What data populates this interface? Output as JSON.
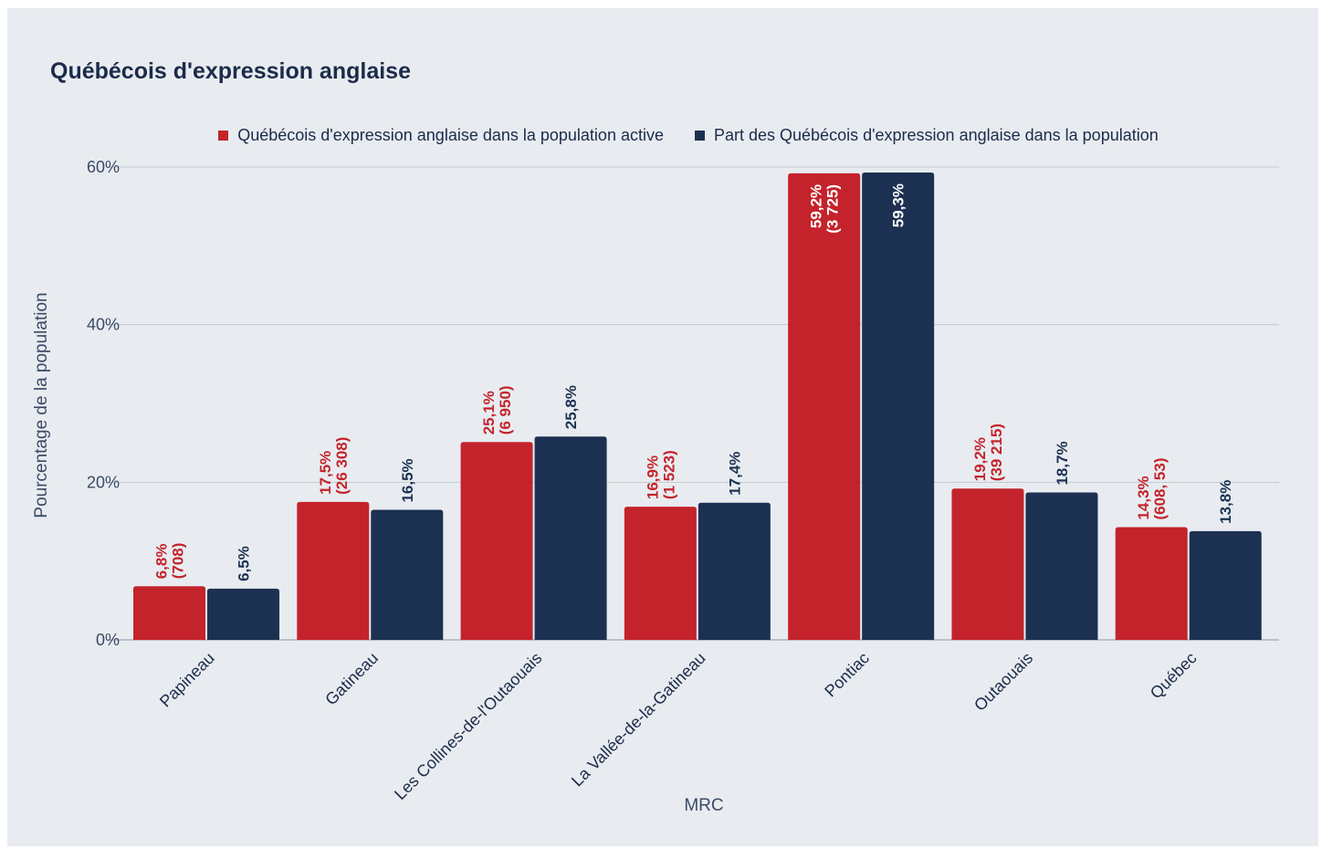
{
  "chart_data": {
    "type": "bar",
    "title": "Québécois d'expression anglaise",
    "xlabel": "MRC",
    "ylabel": "Pourcentage de la population",
    "ylim": [
      0,
      60
    ],
    "yticks": [
      {
        "value": 0,
        "label": "0%"
      },
      {
        "value": 20,
        "label": "20%"
      },
      {
        "value": 40,
        "label": "40%"
      },
      {
        "value": 60,
        "label": "60%"
      }
    ],
    "grid": true,
    "legend_position": "top",
    "categories": [
      "Papineau",
      "Gatineau",
      "Les Collines-de-l'Outaouais",
      "La Vallée-de-la-Gatineau",
      "Pontiac",
      "Outaouais",
      "Québec"
    ],
    "series": [
      {
        "name": "Québécois d'expression anglaise dans la population active",
        "color": "#c4232b",
        "values": [
          6.8,
          17.5,
          25.1,
          16.9,
          59.2,
          19.2,
          14.3
        ],
        "labels": [
          [
            "6,8%",
            "(708)"
          ],
          [
            "17,5%",
            "(26 308)"
          ],
          [
            "25,1%",
            "(6 950)"
          ],
          [
            "16,9%",
            "(1 523)"
          ],
          [
            "59,2%",
            "(3 725)"
          ],
          [
            "19,2%",
            "(39 215)"
          ],
          [
            "14,3%",
            "(608, 53)"
          ]
        ]
      },
      {
        "name": "Part des Québécois d'expression anglaise dans la population",
        "color": "#1c3152",
        "values": [
          6.5,
          16.5,
          25.8,
          17.4,
          59.3,
          18.7,
          13.8
        ],
        "labels": [
          [
            "6,5%"
          ],
          [
            "16,5%"
          ],
          [
            "25,8%"
          ],
          [
            "17,4%"
          ],
          [
            "59,3%"
          ],
          [
            "18,7%"
          ],
          [
            "13,8%"
          ]
        ]
      }
    ],
    "colors": {
      "background": "#e8ecf0",
      "grid": "#c3c9d2",
      "title": "#1c2b4a"
    }
  }
}
